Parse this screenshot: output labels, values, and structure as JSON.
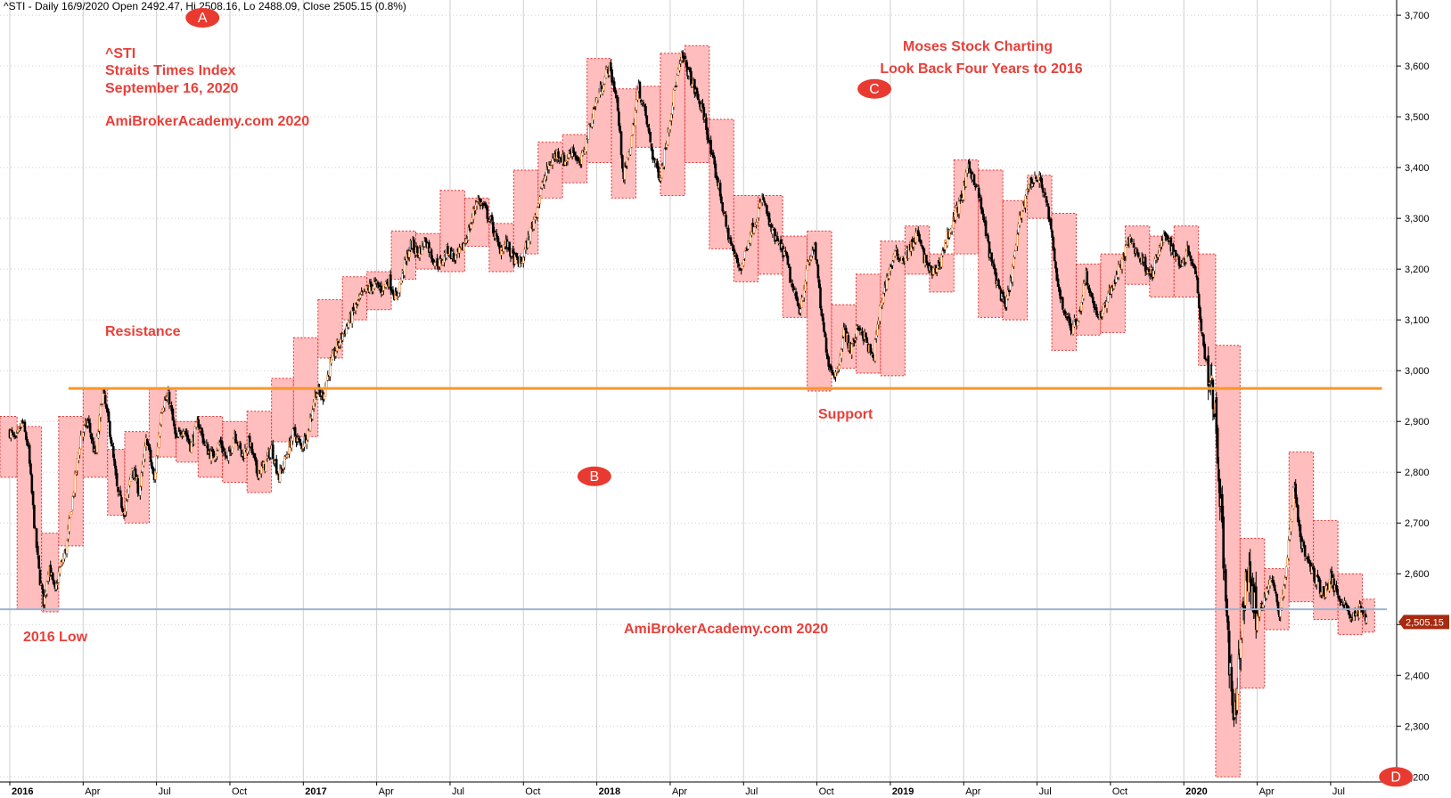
{
  "header": "^STI - Daily 16/9/2020 Open 2492.47, Hi 2508.16, Lo 2488.09, Close 2505.15 (0.8%)",
  "notes": {
    "symbol": "^STI",
    "index_name": "Straits Times Index",
    "date": "September 16, 2020",
    "watermark_top": "AmiBrokerAcademy.com  2020",
    "charting_title": "Moses Stock Charting",
    "charting_subtitle": "Look Back Four Years to 2016",
    "resistance": "Resistance",
    "support": "Support",
    "low_2016": "2016 Low",
    "watermark_bottom": "AmiBrokerAcademy.com  2020"
  },
  "markers": [
    {
      "label": "A",
      "x": 7.88,
      "y": 3695
    },
    {
      "label": "B",
      "x": 23.9,
      "y": 2792
    },
    {
      "label": "C",
      "x": 35.35,
      "y": 3555
    },
    {
      "label": "D",
      "x": 56.67,
      "y": 2200
    }
  ],
  "last_price": {
    "label": "2,505.15",
    "value": 2505.15
  },
  "colors": {
    "candle": "#000000",
    "candle_up": "#f07a28",
    "box_fill": "#ffbdbd",
    "box_border": "#e03030",
    "support_line": "#f7962a",
    "low_line": "#9ab3d0",
    "grid": "#cfcfcf",
    "note_text": "#e8403a",
    "marker": "#e83a30",
    "last_price_bg": "#a82a10"
  },
  "chart_data": {
    "type": "candlestick",
    "x_unit": "month index from Jan 2016",
    "ylim": [
      2190,
      3730
    ],
    "xlim": [
      -0.4,
      56.7
    ],
    "y_ticks": [
      2200,
      2300,
      2400,
      2500,
      2600,
      2700,
      2800,
      2900,
      3000,
      3100,
      3200,
      3300,
      3400,
      3500,
      3600,
      3700
    ],
    "y_tick_labels": [
      "2,200",
      "2,300",
      "2,400",
      "",
      "2,600",
      "2,700",
      "2,800",
      "2,900",
      "3,000",
      "3,100",
      "3,200",
      "3,300",
      "3,400",
      "3,500",
      "3,600",
      "3,700"
    ],
    "x_ticks": [
      {
        "m": 0,
        "label": "2016",
        "year": true
      },
      {
        "m": 3,
        "label": "Apr",
        "year": false
      },
      {
        "m": 6,
        "label": "Jul",
        "year": false
      },
      {
        "m": 9,
        "label": "Oct",
        "year": false
      },
      {
        "m": 12,
        "label": "2017",
        "year": true
      },
      {
        "m": 15,
        "label": "Apr",
        "year": false
      },
      {
        "m": 18,
        "label": "Jul",
        "year": false
      },
      {
        "m": 21,
        "label": "Oct",
        "year": false
      },
      {
        "m": 24,
        "label": "2018",
        "year": true
      },
      {
        "m": 27,
        "label": "Apr",
        "year": false
      },
      {
        "m": 30,
        "label": "Jul",
        "year": false
      },
      {
        "m": 33,
        "label": "Oct",
        "year": false
      },
      {
        "m": 36,
        "label": "2019",
        "year": true
      },
      {
        "m": 39,
        "label": "Apr",
        "year": false
      },
      {
        "m": 42,
        "label": "Jul",
        "year": false
      },
      {
        "m": 45,
        "label": "Oct",
        "year": false
      },
      {
        "m": 48,
        "label": "2020",
        "year": true
      },
      {
        "m": 51,
        "label": "Apr",
        "year": false
      },
      {
        "m": 54,
        "label": "Jul",
        "year": false
      }
    ],
    "support_level": 2965,
    "low_2016_level": 2530,
    "price_path": [
      [
        0,
        2880
      ],
      [
        0.25,
        2860
      ],
      [
        0.5,
        2900
      ],
      [
        0.75,
        2850
      ],
      [
        1,
        2700
      ],
      [
        1.2,
        2600
      ],
      [
        1.4,
        2540
      ],
      [
        1.6,
        2620
      ],
      [
        1.85,
        2560
      ],
      [
        2,
        2600
      ],
      [
        2.3,
        2650
      ],
      [
        2.6,
        2760
      ],
      [
        2.9,
        2870
      ],
      [
        3.2,
        2900
      ],
      [
        3.5,
        2830
      ],
      [
        3.8,
        2960
      ],
      [
        4.1,
        2880
      ],
      [
        4.4,
        2760
      ],
      [
        4.7,
        2720
      ],
      [
        5,
        2810
      ],
      [
        5.3,
        2760
      ],
      [
        5.6,
        2870
      ],
      [
        5.9,
        2780
      ],
      [
        6.2,
        2930
      ],
      [
        6.5,
        2950
      ],
      [
        6.8,
        2860
      ],
      [
        7.1,
        2890
      ],
      [
        7.4,
        2850
      ],
      [
        7.7,
        2900
      ],
      [
        8,
        2850
      ],
      [
        8.3,
        2830
      ],
      [
        8.6,
        2860
      ],
      [
        8.9,
        2820
      ],
      [
        9.2,
        2880
      ],
      [
        9.5,
        2830
      ],
      [
        9.8,
        2860
      ],
      [
        10.1,
        2800
      ],
      [
        10.4,
        2810
      ],
      [
        10.7,
        2850
      ],
      [
        11,
        2790
      ],
      [
        11.3,
        2830
      ],
      [
        11.6,
        2880
      ],
      [
        11.9,
        2850
      ],
      [
        12.2,
        2880
      ],
      [
        12.5,
        2960
      ],
      [
        12.8,
        2950
      ],
      [
        13.1,
        3010
      ],
      [
        13.4,
        3050
      ],
      [
        13.7,
        3080
      ],
      [
        14,
        3110
      ],
      [
        14.3,
        3140
      ],
      [
        14.6,
        3160
      ],
      [
        14.9,
        3170
      ],
      [
        15.2,
        3160
      ],
      [
        15.5,
        3180
      ],
      [
        15.8,
        3140
      ],
      [
        16.1,
        3200
      ],
      [
        16.4,
        3250
      ],
      [
        16.7,
        3230
      ],
      [
        17,
        3260
      ],
      [
        17.3,
        3220
      ],
      [
        17.6,
        3210
      ],
      [
        17.9,
        3240
      ],
      [
        18.2,
        3220
      ],
      [
        18.5,
        3240
      ],
      [
        18.8,
        3280
      ],
      [
        19.1,
        3340
      ],
      [
        19.4,
        3320
      ],
      [
        19.7,
        3290
      ],
      [
        20,
        3240
      ],
      [
        20.3,
        3250
      ],
      [
        20.6,
        3220
      ],
      [
        20.9,
        3210
      ],
      [
        21.2,
        3260
      ],
      [
        21.5,
        3310
      ],
      [
        21.8,
        3370
      ],
      [
        22.1,
        3410
      ],
      [
        22.4,
        3430
      ],
      [
        22.7,
        3410
      ],
      [
        23,
        3440
      ],
      [
        23.3,
        3400
      ],
      [
        23.6,
        3460
      ],
      [
        23.9,
        3520
      ],
      [
        24.2,
        3560
      ],
      [
        24.5,
        3600
      ],
      [
        24.8,
        3540
      ],
      [
        25.1,
        3380
      ],
      [
        25.4,
        3450
      ],
      [
        25.7,
        3560
      ],
      [
        26,
        3500
      ],
      [
        26.3,
        3420
      ],
      [
        26.6,
        3380
      ],
      [
        26.9,
        3470
      ],
      [
        27.2,
        3560
      ],
      [
        27.5,
        3620
      ],
      [
        27.8,
        3580
      ],
      [
        28.1,
        3540
      ],
      [
        28.4,
        3500
      ],
      [
        28.7,
        3420
      ],
      [
        29,
        3360
      ],
      [
        29.3,
        3280
      ],
      [
        29.6,
        3230
      ],
      [
        29.9,
        3200
      ],
      [
        30.2,
        3260
      ],
      [
        30.5,
        3300
      ],
      [
        30.8,
        3340
      ],
      [
        31.1,
        3280
      ],
      [
        31.4,
        3250
      ],
      [
        31.7,
        3230
      ],
      [
        32,
        3160
      ],
      [
        32.3,
        3120
      ],
      [
        32.6,
        3200
      ],
      [
        32.9,
        3250
      ],
      [
        33.2,
        3100
      ],
      [
        33.5,
        3010
      ],
      [
        33.8,
        2990
      ],
      [
        34.1,
        3080
      ],
      [
        34.4,
        3040
      ],
      [
        34.7,
        3090
      ],
      [
        35,
        3060
      ],
      [
        35.3,
        3020
      ],
      [
        35.6,
        3130
      ],
      [
        35.9,
        3190
      ],
      [
        36.2,
        3230
      ],
      [
        36.5,
        3220
      ],
      [
        36.8,
        3240
      ],
      [
        37.1,
        3270
      ],
      [
        37.4,
        3220
      ],
      [
        37.7,
        3190
      ],
      [
        38,
        3210
      ],
      [
        38.3,
        3260
      ],
      [
        38.6,
        3300
      ],
      [
        38.9,
        3340
      ],
      [
        39.2,
        3400
      ],
      [
        39.5,
        3370
      ],
      [
        39.8,
        3300
      ],
      [
        40.1,
        3220
      ],
      [
        40.4,
        3170
      ],
      [
        40.7,
        3120
      ],
      [
        41,
        3200
      ],
      [
        41.3,
        3300
      ],
      [
        41.6,
        3360
      ],
      [
        41.9,
        3380
      ],
      [
        42.2,
        3370
      ],
      [
        42.5,
        3300
      ],
      [
        42.8,
        3180
      ],
      [
        43.1,
        3120
      ],
      [
        43.4,
        3080
      ],
      [
        43.7,
        3110
      ],
      [
        44,
        3190
      ],
      [
        44.3,
        3130
      ],
      [
        44.6,
        3100
      ],
      [
        44.9,
        3150
      ],
      [
        45.2,
        3180
      ],
      [
        45.5,
        3220
      ],
      [
        45.8,
        3260
      ],
      [
        46.1,
        3230
      ],
      [
        46.4,
        3210
      ],
      [
        46.7,
        3190
      ],
      [
        47,
        3240
      ],
      [
        47.3,
        3270
      ],
      [
        47.6,
        3230
      ],
      [
        47.9,
        3210
      ],
      [
        48.2,
        3240
      ],
      [
        48.5,
        3190
      ],
      [
        48.8,
        3050
      ],
      [
        49,
        3000
      ],
      [
        49.15,
        2980
      ],
      [
        49.3,
        2900
      ],
      [
        49.5,
        2750
      ],
      [
        49.7,
        2550
      ],
      [
        49.9,
        2400
      ],
      [
        50.05,
        2280
      ],
      [
        50.2,
        2400
      ],
      [
        50.4,
        2520
      ],
      [
        50.6,
        2600
      ],
      [
        50.8,
        2570
      ],
      [
        51,
        2510
      ],
      [
        51.3,
        2560
      ],
      [
        51.6,
        2590
      ],
      [
        51.9,
        2520
      ],
      [
        52.2,
        2610
      ],
      [
        52.5,
        2780
      ],
      [
        52.8,
        2660
      ],
      [
        53.1,
        2620
      ],
      [
        53.4,
        2590
      ],
      [
        53.7,
        2560
      ],
      [
        54,
        2590
      ],
      [
        54.3,
        2560
      ],
      [
        54.6,
        2540
      ],
      [
        54.9,
        2510
      ],
      [
        55.2,
        2530
      ],
      [
        55.5,
        2505
      ]
    ],
    "monthly_boxes": [
      [
        -0.4,
        0.3,
        2790,
        2910
      ],
      [
        0.3,
        1.3,
        2530,
        2890
      ],
      [
        1.3,
        2,
        2525,
        2680
      ],
      [
        2,
        3,
        2655,
        2910
      ],
      [
        3,
        4,
        2790,
        2965
      ],
      [
        4,
        4.7,
        2715,
        2845
      ],
      [
        4.7,
        5.7,
        2700,
        2880
      ],
      [
        5.7,
        6.8,
        2830,
        2965
      ],
      [
        6.8,
        7.7,
        2820,
        2900
      ],
      [
        7.7,
        8.7,
        2790,
        2910
      ],
      [
        8.7,
        9.7,
        2780,
        2900
      ],
      [
        9.7,
        10.7,
        2760,
        2920
      ],
      [
        10.7,
        11.6,
        2860,
        2985
      ],
      [
        11.6,
        12.6,
        2870,
        3065
      ],
      [
        12.6,
        13.6,
        3025,
        3140
      ],
      [
        13.6,
        14.6,
        3100,
        3185
      ],
      [
        14.6,
        15.6,
        3120,
        3195
      ],
      [
        15.6,
        16.6,
        3180,
        3275
      ],
      [
        16.6,
        17.6,
        3200,
        3270
      ],
      [
        17.6,
        18.6,
        3195,
        3355
      ],
      [
        18.6,
        19.6,
        3245,
        3340
      ],
      [
        19.6,
        20.6,
        3195,
        3290
      ],
      [
        20.6,
        21.6,
        3230,
        3395
      ],
      [
        21.6,
        22.6,
        3340,
        3450
      ],
      [
        22.6,
        23.6,
        3370,
        3465
      ],
      [
        23.6,
        24.6,
        3410,
        3615
      ],
      [
        24.6,
        25.6,
        3340,
        3555
      ],
      [
        25.6,
        26.6,
        3440,
        3560
      ],
      [
        26.6,
        27.6,
        3345,
        3625
      ],
      [
        27.6,
        28.6,
        3410,
        3640
      ],
      [
        28.6,
        29.6,
        3240,
        3495
      ],
      [
        29.6,
        30.6,
        3175,
        3345
      ],
      [
        30.6,
        31.6,
        3190,
        3345
      ],
      [
        31.6,
        32.6,
        3105,
        3265
      ],
      [
        32.6,
        33.6,
        2960,
        3275
      ],
      [
        33.6,
        34.6,
        3005,
        3130
      ],
      [
        34.6,
        35.6,
        2995,
        3190
      ],
      [
        35.6,
        36.6,
        2990,
        3255
      ],
      [
        36.6,
        37.6,
        3190,
        3285
      ],
      [
        37.6,
        38.6,
        3155,
        3230
      ],
      [
        38.6,
        39.6,
        3230,
        3415
      ],
      [
        39.6,
        40.6,
        3105,
        3395
      ],
      [
        40.6,
        41.6,
        3100,
        3335
      ],
      [
        41.6,
        42.6,
        3300,
        3385
      ],
      [
        42.6,
        43.6,
        3040,
        3310
      ],
      [
        43.6,
        44.6,
        3070,
        3210
      ],
      [
        44.6,
        45.6,
        3075,
        3230
      ],
      [
        45.6,
        46.6,
        3170,
        3285
      ],
      [
        46.6,
        47.6,
        3145,
        3265
      ],
      [
        47.6,
        48.6,
        3145,
        3285
      ],
      [
        48.6,
        49.3,
        3010,
        3230
      ],
      [
        49.3,
        50.3,
        2200,
        3050
      ],
      [
        50.3,
        51.3,
        2375,
        2670
      ],
      [
        51.3,
        52.3,
        2490,
        2610
      ],
      [
        52.3,
        53.3,
        2545,
        2840
      ],
      [
        53.3,
        54.3,
        2510,
        2705
      ],
      [
        54.3,
        55.3,
        2480,
        2600
      ],
      [
        55.3,
        55.8,
        2485,
        2550
      ]
    ]
  }
}
